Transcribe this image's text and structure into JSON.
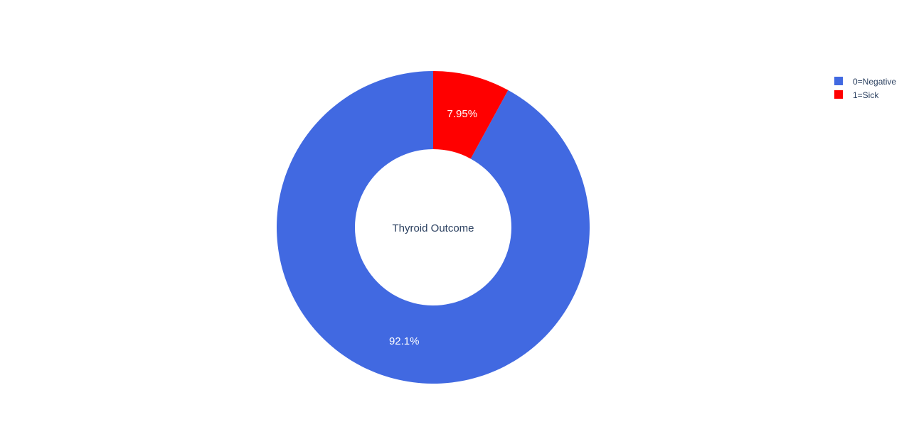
{
  "chart_data": {
    "type": "pie",
    "hole": 0.5,
    "center_label": "Thyroid Outcome",
    "categories": [
      "0=Negative",
      "1=Sick"
    ],
    "values": [
      92.05,
      7.95
    ],
    "value_labels": [
      "92.1%",
      "7.95%"
    ],
    "colors": [
      "#4169E1",
      "#FF0000"
    ],
    "legend": {
      "placement": "top-right",
      "entries": [
        "0=Negative",
        "1=Sick"
      ]
    }
  }
}
